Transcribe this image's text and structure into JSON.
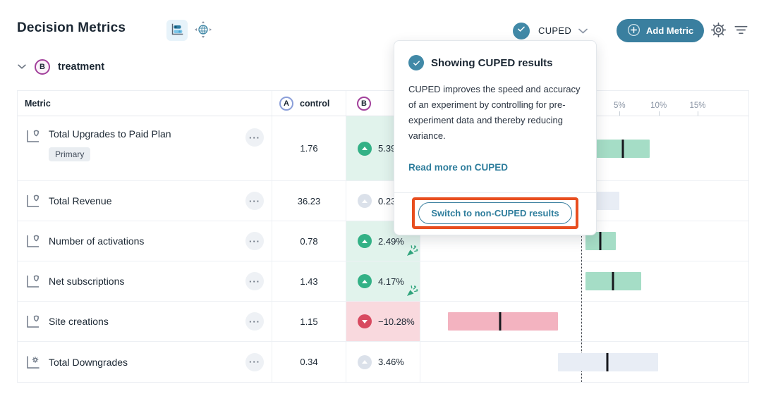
{
  "header": {
    "title": "Decision Metrics",
    "cuped_toggle": {
      "label": "CUPED"
    },
    "add_metric_label": "Add Metric"
  },
  "variant": {
    "badge": "B",
    "label": "treatment"
  },
  "popover": {
    "title": "Showing CUPED results",
    "body": "CUPED improves the speed and accuracy of an experiment by controlling for pre-experiment data and thereby reducing variance.",
    "link": "Read more on CUPED",
    "button": "Switch to non-CUPED results"
  },
  "icons": {
    "more_label": "···"
  },
  "table": {
    "columns": {
      "metric": "Metric",
      "control_badge": "A",
      "control": "control",
      "treatment_badge": "B"
    },
    "rows": [
      {
        "name": "Total Upgrades to Paid Plan",
        "tag": "Primary",
        "control": "1.76",
        "delta": "5.39%"
      },
      {
        "name": "Total Revenue",
        "control": "36.23",
        "delta": "0.23%"
      },
      {
        "name": "Number of activations",
        "control": "0.78",
        "delta": "2.49%"
      },
      {
        "name": "Net subscriptions",
        "control": "1.43",
        "delta": "4.17%"
      },
      {
        "name": "Site creations",
        "control": "1.15",
        "delta": "−10.28%"
      },
      {
        "name": "Total Downgrades",
        "control": "0.34",
        "delta": "3.46%"
      }
    ]
  },
  "chart_data": {
    "type": "bar",
    "subtype": "confidence-interval-forest-plot",
    "unit": "%",
    "axis": {
      "min": -20.5,
      "max": 21.5,
      "zero_line": 0,
      "tick_marks": [
        -20,
        -15,
        -10,
        -5,
        0,
        5,
        10,
        15
      ],
      "labeled_ticks": [
        {
          "label": "5%",
          "value": 5
        },
        {
          "label": "10%",
          "value": 10
        },
        {
          "label": "15%",
          "value": 15
        }
      ]
    },
    "rows": [
      {
        "metric": "Total Upgrades to Paid Plan",
        "estimate": 5.39,
        "ci_low": 2.0,
        "ci_high": 8.9,
        "direction": "positive"
      },
      {
        "metric": "Total Revenue",
        "estimate": 0.23,
        "ci_low": -4.7,
        "ci_high": 5.0,
        "direction": "neutral"
      },
      {
        "metric": "Number of activations",
        "estimate": 2.49,
        "ci_low": 0.6,
        "ci_high": 4.5,
        "direction": "positive",
        "celebration": true
      },
      {
        "metric": "Net subscriptions",
        "estimate": 4.17,
        "ci_low": 0.6,
        "ci_high": 7.8,
        "direction": "positive",
        "celebration": true
      },
      {
        "metric": "Site creations",
        "estimate": -10.28,
        "ci_low": -17.0,
        "ci_high": -2.9,
        "direction": "negative"
      },
      {
        "metric": "Total Downgrades",
        "estimate": 3.46,
        "ci_low": -2.9,
        "ci_high": 9.9,
        "direction": "neutral"
      }
    ]
  },
  "colors": {
    "accent_teal": "#3a7f9f",
    "link_teal": "#2e7d9c",
    "positive": "#33b186",
    "negative": "#d84a60",
    "neutral": "#dbe1ea",
    "bar_positive": "#a5ddc6",
    "bar_negative": "#f3b3c0",
    "bar_neutral": "#e8edf5",
    "annotation_orange": "#e84e1f",
    "variant_purple": "#a2409b",
    "control_blue": "#8b9fd9"
  }
}
